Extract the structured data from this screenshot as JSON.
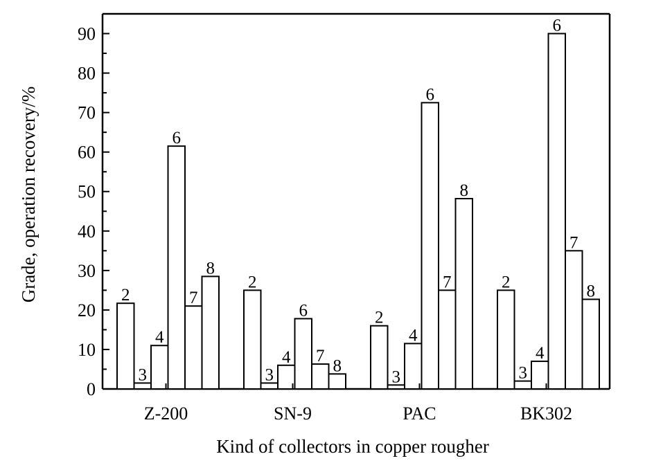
{
  "chart_data": {
    "type": "bar",
    "title": "",
    "xlabel": "Kind of collectors in copper rougher",
    "ylabel": "Grade, operation recovery/%",
    "ylim": [
      0,
      95
    ],
    "yticks": [
      0,
      10,
      20,
      30,
      40,
      50,
      60,
      70,
      80,
      90
    ],
    "grid": false,
    "legend": "none",
    "categories": [
      "Z-200",
      "SN-9",
      "PAC",
      "BK302"
    ],
    "series": [
      {
        "label": "2",
        "values": [
          21.7,
          25.0,
          16.0,
          25.0
        ]
      },
      {
        "label": "3",
        "values": [
          1.5,
          1.5,
          1.0,
          2.0
        ]
      },
      {
        "label": "4",
        "values": [
          11.0,
          6.0,
          11.5,
          7.0
        ]
      },
      {
        "label": "6",
        "values": [
          61.5,
          17.8,
          72.5,
          90.0
        ]
      },
      {
        "label": "7",
        "values": [
          21.0,
          6.3,
          25.0,
          35.0
        ]
      },
      {
        "label": "8",
        "values": [
          28.5,
          3.8,
          48.2,
          22.7
        ]
      }
    ],
    "colors": {
      "bar_fill": "#ffffff",
      "bar_stroke": "#000000"
    }
  }
}
